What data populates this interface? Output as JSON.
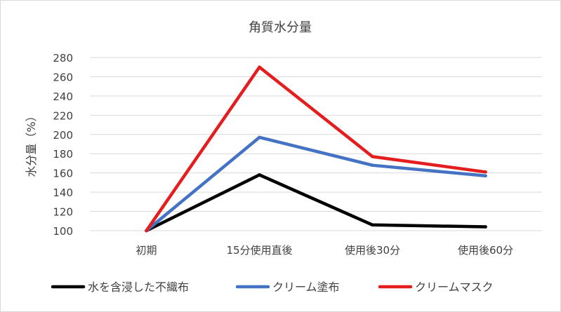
{
  "chart_data": {
    "type": "line",
    "title": "角質水分量",
    "xlabel": "",
    "ylabel": "水分量（%）",
    "categories": [
      "初期",
      "15分使用直後",
      "使用後30分",
      "使用後60分"
    ],
    "ylim": [
      100,
      280
    ],
    "yticks": [
      100,
      120,
      140,
      160,
      180,
      200,
      220,
      240,
      260,
      280
    ],
    "grid": true,
    "legend_position": "bottom",
    "series": [
      {
        "name": "水を含浸した不織布",
        "color": "#000000",
        "values": [
          100,
          158,
          106,
          104
        ]
      },
      {
        "name": "クリーム塗布",
        "color": "#4472C4",
        "values": [
          100,
          197,
          168,
          157
        ]
      },
      {
        "name": "クリームマスク",
        "color": "#E41E1E",
        "values": [
          100,
          270,
          177,
          161
        ]
      }
    ]
  }
}
